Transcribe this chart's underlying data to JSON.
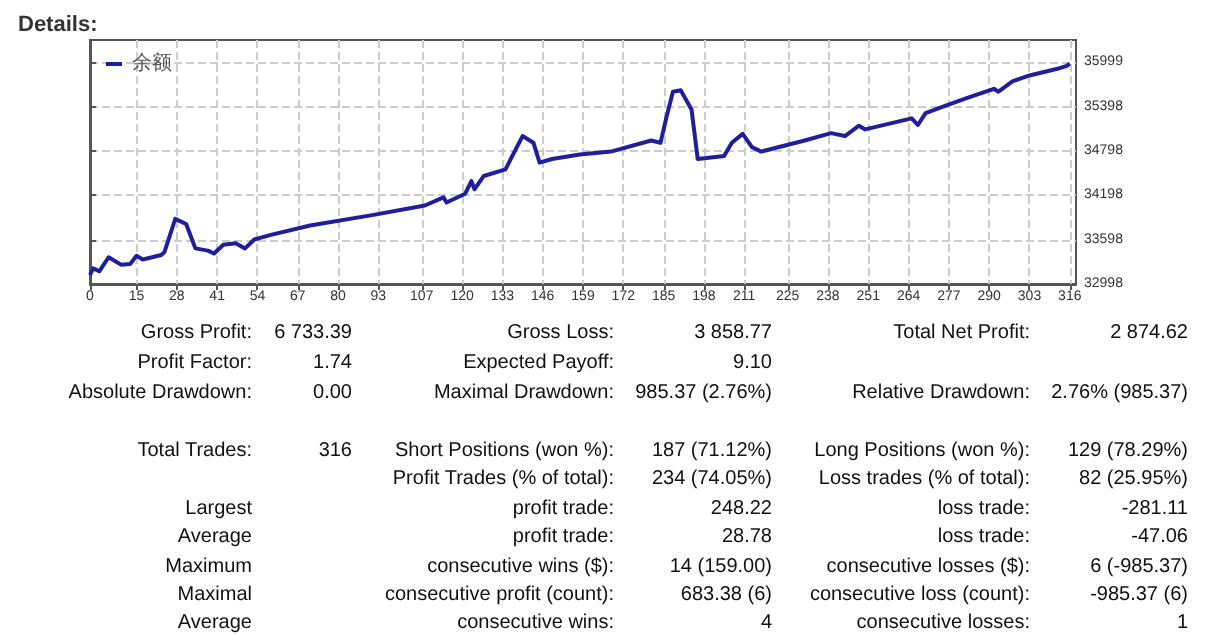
{
  "chart_data": [
    {
      "type": "line",
      "title": "Details:",
      "legend": "top left",
      "grid": true,
      "marker": "none",
      "line_style": "solid",
      "xlim": [
        0,
        318
      ],
      "xticks": [
        0,
        15,
        28,
        41,
        54,
        67,
        80,
        93,
        107,
        120,
        133,
        146,
        159,
        172,
        185,
        198,
        211,
        225,
        238,
        251,
        264,
        277,
        290,
        303,
        316
      ],
      "ylim": [
        32998,
        36300
      ],
      "yticks": [
        32998,
        33598,
        34198,
        34798,
        35398,
        35999
      ],
      "series": [
        {
          "name": "余额",
          "color": "#1f1f9e",
          "x": [
            0,
            1,
            3,
            6,
            10,
            13,
            15,
            17,
            23,
            24,
            27.5,
            31,
            34,
            38,
            40,
            43,
            47,
            50,
            53,
            58,
            71,
            91,
            108,
            114,
            115,
            121,
            123,
            124,
            127,
            134,
            139.5,
            143,
            145,
            149,
            158,
            168,
            181,
            184,
            186,
            188,
            190.5,
            194,
            196,
            204.5,
            207,
            210.5,
            213.5,
            216.5,
            230.5,
            239,
            243.5,
            248,
            250,
            265,
            267,
            269.5,
            274,
            282.5,
            291.5,
            293,
            297.5,
            303,
            312,
            315,
            316
          ],
          "values": [
            33120,
            33210,
            33170,
            33360,
            33260,
            33270,
            33380,
            33330,
            33390,
            33430,
            33880,
            33810,
            33480,
            33450,
            33410,
            33530,
            33550,
            33480,
            33600,
            33660,
            33790,
            33930,
            34060,
            34170,
            34100,
            34220,
            34390,
            34280,
            34460,
            34550,
            35000,
            34910,
            34640,
            34690,
            34750,
            34790,
            34940,
            34910,
            35270,
            35600,
            35620,
            35360,
            34690,
            34730,
            34910,
            35030,
            34850,
            34790,
            34940,
            35040,
            35000,
            35140,
            35090,
            35240,
            35150,
            35310,
            35380,
            35510,
            35640,
            35600,
            35740,
            35820,
            35910,
            35950,
            35980
          ]
        }
      ]
    },
    {
      "type": "other",
      "annotations": [
        "Gross Profit:",
        "6 733.39",
        "Gross Loss:",
        "3 858.77",
        "Total Net Profit:",
        "2 874.62",
        "Profit Factor:",
        "1.74",
        "Expected Payoff:",
        "9.10",
        "Absolute Drawdown:",
        "0.00",
        "Maximal Drawdown:",
        "985.37 (2.76%)",
        "Relative Drawdown:",
        "2.76% (985.37)",
        "Total Trades:",
        "316",
        "Short Positions (won %):",
        "187 (71.12%)",
        "Long Positions (won %):",
        "129 (78.29%)",
        "Profit Trades (% of total):",
        "234 (74.05%)",
        "Loss trades (% of total):",
        "82 (25.95%)",
        "Largest",
        "profit trade:",
        "248.22",
        "loss trade:",
        "-281.11",
        "Average",
        "profit trade:",
        "28.78",
        "loss trade:",
        "-47.06",
        "Maximum",
        "consecutive wins ($):",
        "14 (159.00)",
        "consecutive losses ($):",
        "6 (-985.37)",
        "Maximal",
        "consecutive profit (count):",
        "683.38 (6)",
        "consecutive loss (count):",
        "-985.37 (6)",
        "Average",
        "consecutive wins:",
        "4",
        "consecutive losses:",
        "1"
      ]
    }
  ]
}
